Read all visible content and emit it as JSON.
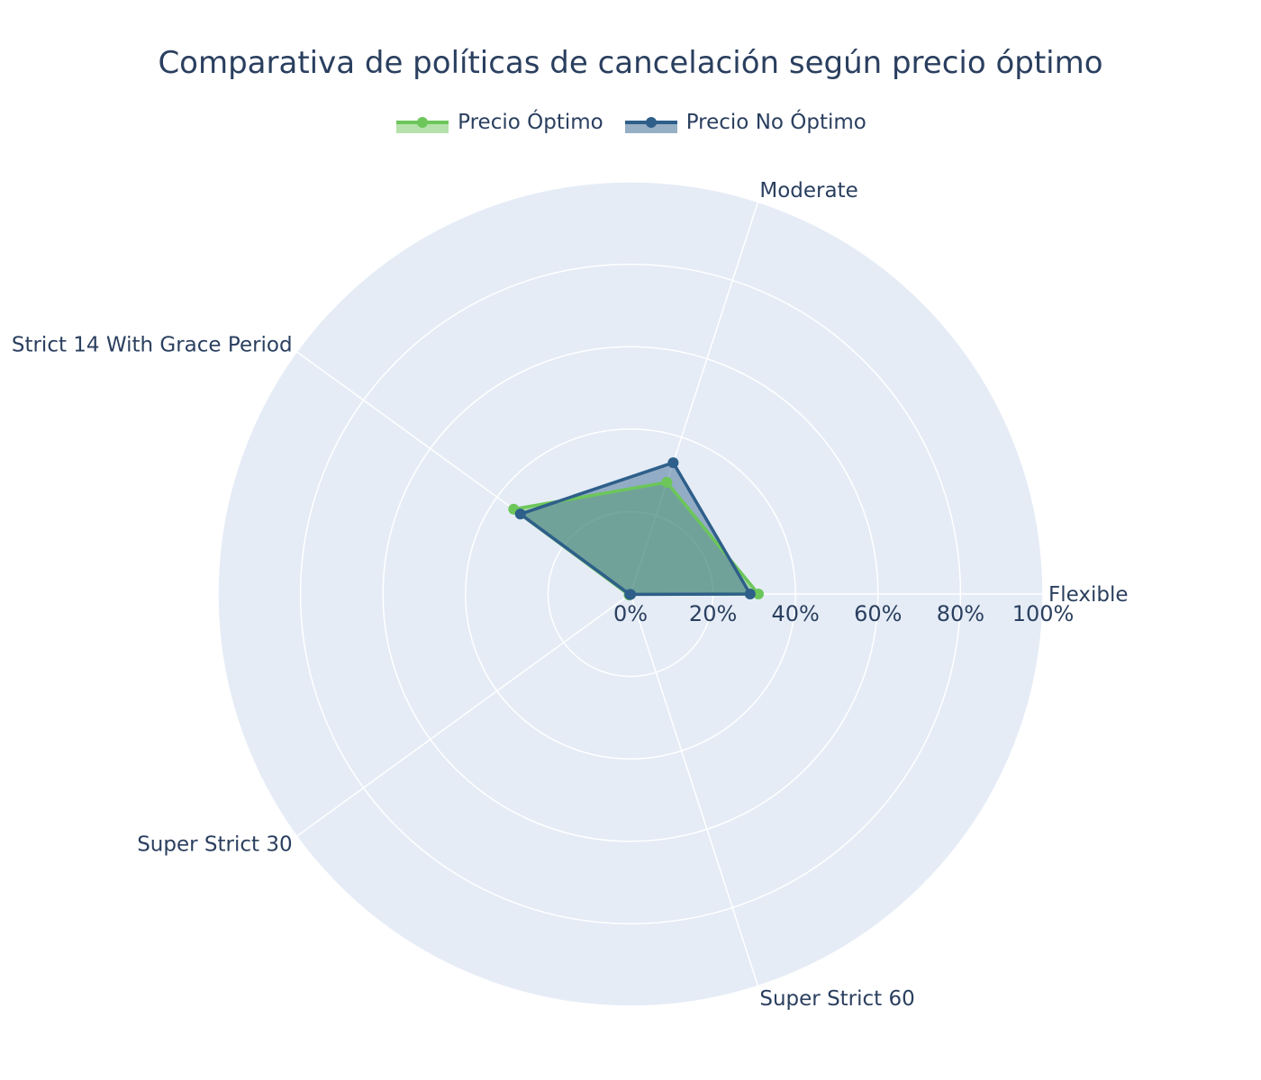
{
  "chart_data": {
    "type": "radar",
    "title": "Comparativa de políticas de cancelación según precio óptimo",
    "categories": [
      "Flexible",
      "Moderate",
      "Strict 14 With Grace Period",
      "Super Strict 30",
      "Super Strict 60"
    ],
    "radial_range": [
      0,
      100
    ],
    "radial_ticks": [
      0,
      20,
      40,
      60,
      80,
      100
    ],
    "radial_tick_labels": [
      "0%",
      "20%",
      "40%",
      "60%",
      "80%",
      "100%"
    ],
    "grid": true,
    "legend_position": "top-center",
    "series": [
      {
        "name": "Precio Óptimo",
        "values": [
          31,
          28.5,
          35,
          0.4,
          0.1
        ],
        "color": "#6cc65a",
        "fill": "rgba(108, 198, 90, 0.5)"
      },
      {
        "name": "Precio No Óptimo",
        "values": [
          29,
          33.5,
          33,
          0.2,
          0.1
        ],
        "color": "#2e5f8a",
        "fill": "rgba(46, 95, 138, 0.45)"
      }
    ],
    "polar_background": "#e5ecf6",
    "grid_color": "#ffffff",
    "text_color": "#2a3f5f"
  }
}
